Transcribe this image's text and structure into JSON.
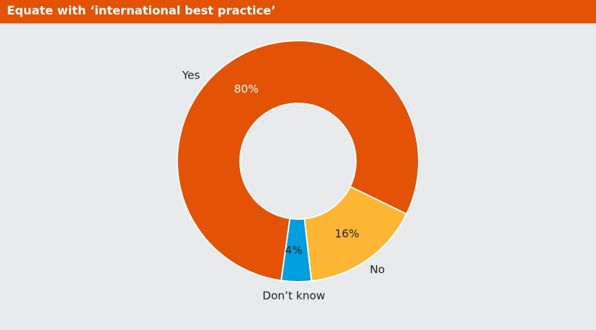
{
  "chart_data": {
    "type": "donut",
    "title": "Equate with ‘international best practice’",
    "categories": [
      "Yes",
      "No",
      "Don’t know"
    ],
    "values": [
      80,
      16,
      4
    ],
    "value_labels": [
      "80%",
      "16%",
      "4%"
    ],
    "colors": [
      "#e35205",
      "#fbb634",
      "#009fdf"
    ]
  }
}
